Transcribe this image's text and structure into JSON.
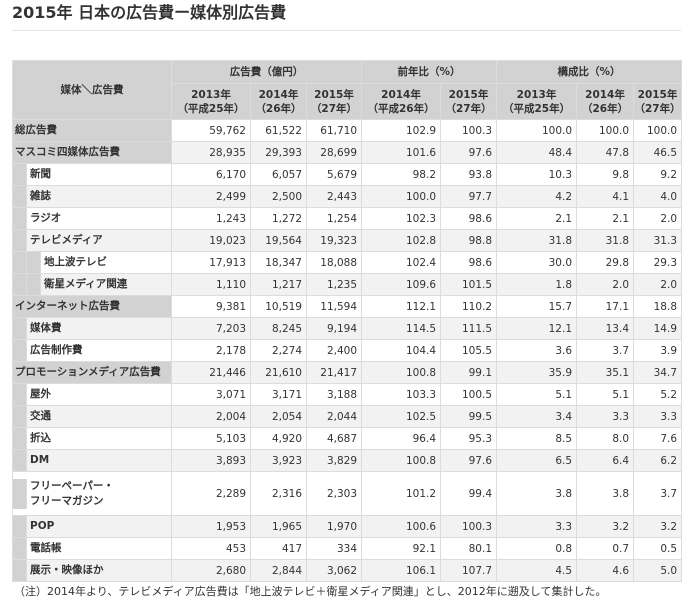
{
  "title": "2015年 日本の広告費ー媒体別広告費",
  "table": {
    "corner": "媒体＼広告費",
    "groups": [
      "広告費（億円）",
      "前年比（%）",
      "構成比（%）"
    ],
    "subheaders": [
      [
        "2013年",
        "（平成25年）"
      ],
      [
        "2014年",
        "（26年）"
      ],
      [
        "2015年",
        "（27年）"
      ],
      [
        "2014年",
        "（平成26年）"
      ],
      [
        "2015年",
        "（27年）"
      ],
      [
        "2013年",
        "（平成25年）"
      ],
      [
        "2014年",
        "（26年）"
      ],
      [
        "2015年",
        "（27年）"
      ]
    ],
    "rows": [
      {
        "label": "総広告費",
        "level": 0,
        "values": [
          "59,762",
          "61,522",
          "61,710",
          "102.9",
          "100.3",
          "100.0",
          "100.0",
          "100.0"
        ]
      },
      {
        "label": "マスコミ四媒体広告費",
        "level": 0,
        "values": [
          "28,935",
          "29,393",
          "28,699",
          "101.6",
          "97.6",
          "48.4",
          "47.8",
          "46.5"
        ]
      },
      {
        "label": "新聞",
        "level": 1,
        "values": [
          "6,170",
          "6,057",
          "5,679",
          "98.2",
          "93.8",
          "10.3",
          "9.8",
          "9.2"
        ]
      },
      {
        "label": "雑誌",
        "level": 1,
        "values": [
          "2,499",
          "2,500",
          "2,443",
          "100.0",
          "97.7",
          "4.2",
          "4.1",
          "4.0"
        ]
      },
      {
        "label": "ラジオ",
        "level": 1,
        "values": [
          "1,243",
          "1,272",
          "1,254",
          "102.3",
          "98.6",
          "2.1",
          "2.1",
          "2.0"
        ]
      },
      {
        "label": "テレビメディア",
        "level": 1,
        "values": [
          "19,023",
          "19,564",
          "19,323",
          "102.8",
          "98.8",
          "31.8",
          "31.8",
          "31.3"
        ]
      },
      {
        "label": "地上波テレビ",
        "level": 2,
        "values": [
          "17,913",
          "18,347",
          "18,088",
          "102.4",
          "98.6",
          "30.0",
          "29.8",
          "29.3"
        ]
      },
      {
        "label": "衛星メディア関連",
        "level": 2,
        "values": [
          "1,110",
          "1,217",
          "1,235",
          "109.6",
          "101.5",
          "1.8",
          "2.0",
          "2.0"
        ]
      },
      {
        "label": "インターネット広告費",
        "level": 0,
        "values": [
          "9,381",
          "10,519",
          "11,594",
          "112.1",
          "110.2",
          "15.7",
          "17.1",
          "18.8"
        ]
      },
      {
        "label": "媒体費",
        "level": 1,
        "values": [
          "7,203",
          "8,245",
          "9,194",
          "114.5",
          "111.5",
          "12.1",
          "13.4",
          "14.9"
        ]
      },
      {
        "label": "広告制作費",
        "level": 1,
        "values": [
          "2,178",
          "2,274",
          "2,400",
          "104.4",
          "105.5",
          "3.6",
          "3.7",
          "3.9"
        ]
      },
      {
        "label": "プロモーションメディア広告費",
        "level": 0,
        "values": [
          "21,446",
          "21,610",
          "21,417",
          "100.8",
          "99.1",
          "35.9",
          "35.1",
          "34.7"
        ]
      },
      {
        "label": "屋外",
        "level": 1,
        "values": [
          "3,071",
          "3,171",
          "3,188",
          "103.3",
          "100.5",
          "5.1",
          "5.1",
          "5.2"
        ]
      },
      {
        "label": "交通",
        "level": 1,
        "values": [
          "2,004",
          "2,054",
          "2,044",
          "102.5",
          "99.5",
          "3.4",
          "3.3",
          "3.3"
        ]
      },
      {
        "label": "折込",
        "level": 1,
        "values": [
          "5,103",
          "4,920",
          "4,687",
          "96.4",
          "95.3",
          "8.5",
          "8.0",
          "7.6"
        ]
      },
      {
        "label": "DM",
        "level": 1,
        "values": [
          "3,893",
          "3,923",
          "3,829",
          "100.8",
          "97.6",
          "6.5",
          "6.4",
          "6.2"
        ]
      },
      {
        "label": "フリーペーパー・\nフリーマガジン",
        "level": 1,
        "tall": true,
        "values": [
          "2,289",
          "2,316",
          "2,303",
          "101.2",
          "99.4",
          "3.8",
          "3.8",
          "3.7"
        ]
      },
      {
        "label": "POP",
        "level": 1,
        "values": [
          "1,953",
          "1,965",
          "1,970",
          "100.6",
          "100.3",
          "3.3",
          "3.2",
          "3.2"
        ]
      },
      {
        "label": "電話帳",
        "level": 1,
        "values": [
          "453",
          "417",
          "334",
          "92.1",
          "80.1",
          "0.8",
          "0.7",
          "0.5"
        ]
      },
      {
        "label": "展示・映像ほか",
        "level": 1,
        "values": [
          "2,680",
          "2,844",
          "3,062",
          "106.1",
          "107.7",
          "4.5",
          "4.6",
          "5.0"
        ]
      }
    ]
  },
  "note": "（注）2014年より、テレビメディア広告費は「地上波テレビ＋衛星メディア関連」とし、2012年に遡及して集計した。"
}
